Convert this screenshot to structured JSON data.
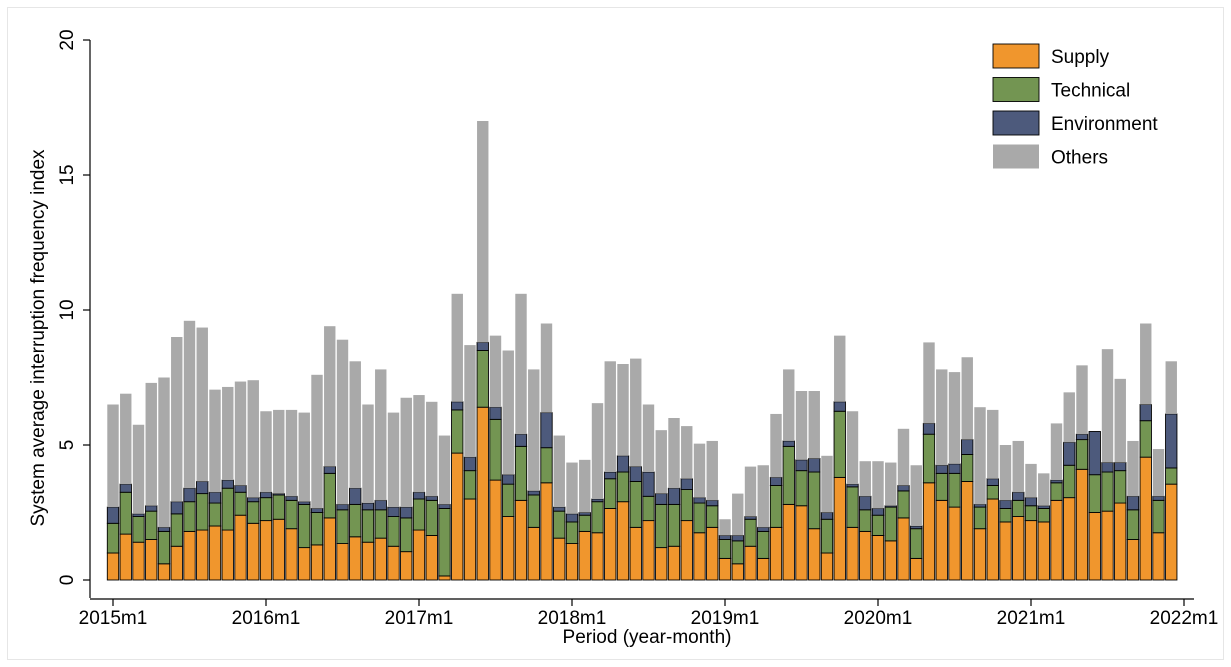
{
  "chart_data": {
    "type": "bar",
    "stacked": true,
    "xlabel": "Period (year-month)",
    "ylabel": "System average interruption frequency index",
    "ylim": [
      0,
      20
    ],
    "yticks": [
      0,
      5,
      10,
      15,
      20
    ],
    "xticks": [
      {
        "label": "2015m1",
        "index": 0
      },
      {
        "label": "2016m1",
        "index": 12
      },
      {
        "label": "2017m1",
        "index": 24
      },
      {
        "label": "2018m1",
        "index": 36
      },
      {
        "label": "2019m1",
        "index": 48
      },
      {
        "label": "2020m1",
        "index": 60
      },
      {
        "label": "2021m1",
        "index": 72
      },
      {
        "label": "2022m1",
        "index": 84
      }
    ],
    "legend_position": "top-right",
    "grid": false,
    "colors": {
      "Supply": "#f0962d",
      "Technical": "#739552",
      "Environment": "#4d5a7c",
      "Others": "#a9a9a9"
    },
    "series": [
      {
        "name": "Supply",
        "values": [
          1.0,
          1.7,
          1.4,
          1.5,
          0.6,
          1.25,
          1.8,
          1.85,
          2.0,
          1.85,
          2.4,
          2.1,
          2.2,
          2.25,
          1.9,
          1.2,
          1.3,
          2.3,
          1.35,
          1.6,
          1.4,
          1.55,
          1.25,
          1.05,
          1.85,
          1.65,
          0.15,
          4.7,
          3.0,
          6.4,
          3.7,
          2.35,
          2.95,
          1.95,
          3.6,
          1.55,
          1.35,
          1.8,
          1.75,
          2.65,
          2.9,
          1.95,
          2.2,
          1.2,
          1.25,
          2.2,
          1.75,
          1.95,
          0.8,
          0.6,
          1.25,
          0.8,
          1.95,
          2.8,
          2.75,
          1.9,
          1.0,
          3.8,
          1.95,
          1.8,
          1.65,
          1.45,
          2.3,
          0.8,
          3.6,
          2.95,
          2.7,
          3.65,
          1.9,
          3.0,
          2.15,
          2.35,
          2.2,
          2.15,
          2.95,
          3.05,
          4.1,
          2.5,
          2.55,
          2.85,
          1.5,
          4.55,
          1.75,
          3.55
        ]
      },
      {
        "name": "Technical",
        "values": [
          1.1,
          1.55,
          0.95,
          1.05,
          1.2,
          1.2,
          1.1,
          1.35,
          0.85,
          1.55,
          0.85,
          0.8,
          0.85,
          0.9,
          1.05,
          1.6,
          1.2,
          1.65,
          1.25,
          1.2,
          1.2,
          1.05,
          1.1,
          1.25,
          1.15,
          1.3,
          2.5,
          1.6,
          1.05,
          2.1,
          2.25,
          1.2,
          2.0,
          1.2,
          1.3,
          1.0,
          0.8,
          0.6,
          1.15,
          1.1,
          1.1,
          1.7,
          0.9,
          1.6,
          1.55,
          1.15,
          1.1,
          0.8,
          0.7,
          0.85,
          1.0,
          1.0,
          1.55,
          2.15,
          1.3,
          2.1,
          1.25,
          2.45,
          1.5,
          0.8,
          0.75,
          1.25,
          1.0,
          1.1,
          1.8,
          1.0,
          1.25,
          1.0,
          0.8,
          0.5,
          0.5,
          0.6,
          0.55,
          0.5,
          0.65,
          1.2,
          1.1,
          1.4,
          1.45,
          1.2,
          1.1,
          1.35,
          1.2,
          0.6
        ]
      },
      {
        "name": "Environment",
        "values": [
          0.6,
          0.3,
          0.1,
          0.2,
          0.15,
          0.45,
          0.5,
          0.45,
          0.4,
          0.3,
          0.25,
          0.15,
          0.2,
          0.05,
          0.15,
          0.1,
          0.15,
          0.25,
          0.2,
          0.6,
          0.25,
          0.35,
          0.35,
          0.4,
          0.25,
          0.15,
          0.15,
          0.3,
          0.5,
          0.3,
          0.45,
          0.35,
          0.45,
          0.15,
          1.3,
          0.15,
          0.3,
          0.1,
          0.1,
          0.25,
          0.6,
          0.55,
          0.9,
          0.4,
          0.6,
          0.4,
          0.2,
          0.2,
          0.15,
          0.2,
          0.1,
          0.15,
          0.3,
          0.2,
          0.4,
          0.5,
          0.25,
          0.35,
          0.1,
          0.5,
          0.25,
          0.05,
          0.2,
          0.1,
          0.4,
          0.3,
          0.35,
          0.55,
          0.1,
          0.25,
          0.3,
          0.3,
          0.3,
          0.1,
          0.1,
          0.85,
          0.2,
          1.6,
          0.35,
          0.3,
          0.5,
          0.6,
          0.15,
          2.0
        ]
      },
      {
        "name": "Others",
        "values": [
          3.8,
          3.35,
          3.3,
          4.55,
          5.55,
          6.1,
          6.2,
          5.7,
          3.8,
          3.45,
          3.85,
          4.35,
          3.0,
          3.1,
          3.2,
          3.3,
          4.95,
          5.2,
          6.1,
          4.7,
          3.65,
          4.85,
          3.5,
          4.05,
          3.6,
          3.5,
          2.55,
          4.0,
          4.15,
          8.2,
          2.65,
          4.6,
          5.2,
          4.5,
          3.3,
          2.65,
          1.9,
          1.95,
          3.55,
          4.1,
          3.4,
          4.0,
          2.5,
          2.35,
          2.6,
          1.95,
          2.0,
          2.2,
          0.6,
          1.55,
          1.85,
          2.3,
          2.35,
          2.65,
          2.55,
          2.5,
          2.1,
          2.45,
          2.7,
          1.3,
          1.75,
          1.6,
          2.1,
          2.25,
          3.0,
          3.55,
          3.4,
          3.05,
          3.6,
          2.55,
          2.05,
          1.9,
          1.25,
          1.2,
          2.1,
          1.85,
          2.55,
          0.0,
          4.2,
          3.1,
          2.05,
          3.0,
          1.75,
          1.95
        ]
      }
    ]
  }
}
